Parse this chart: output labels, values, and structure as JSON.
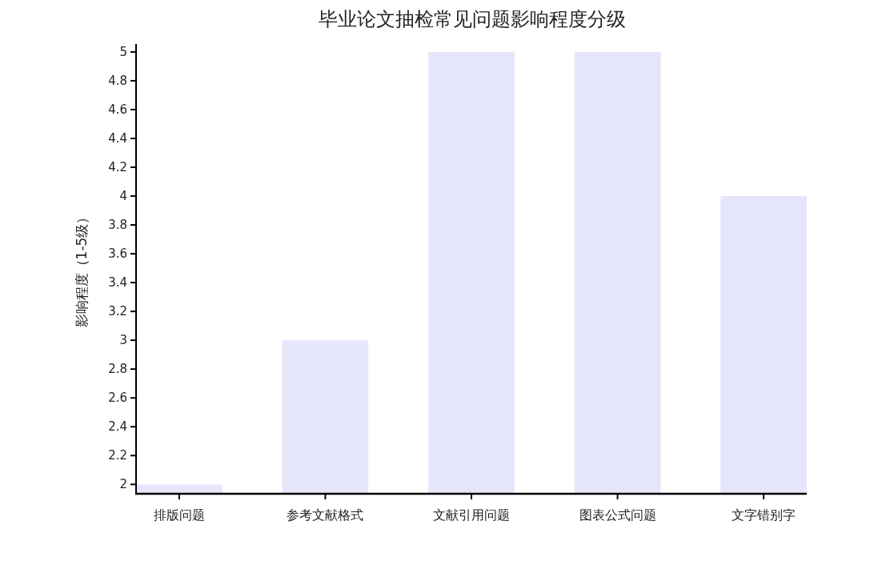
{
  "chart_data": {
    "type": "bar",
    "title": "毕业论文抽检常见问题影响程度分级",
    "ylabel": "影响程度（1-5级）",
    "categories": [
      "排版问题",
      "参考文献格式",
      "文献引用问题",
      "图表公式问题",
      "文字错别字"
    ],
    "values": [
      2,
      3,
      5,
      5,
      4
    ],
    "color": "#e6e6fa",
    "ylim": [
      1.935,
      5.055
    ],
    "yticks": [
      2,
      2.2,
      2.4,
      2.6,
      2.8,
      3,
      3.2,
      3.4,
      3.6,
      3.8,
      4,
      4.2,
      4.4,
      4.6,
      4.8,
      5
    ]
  }
}
